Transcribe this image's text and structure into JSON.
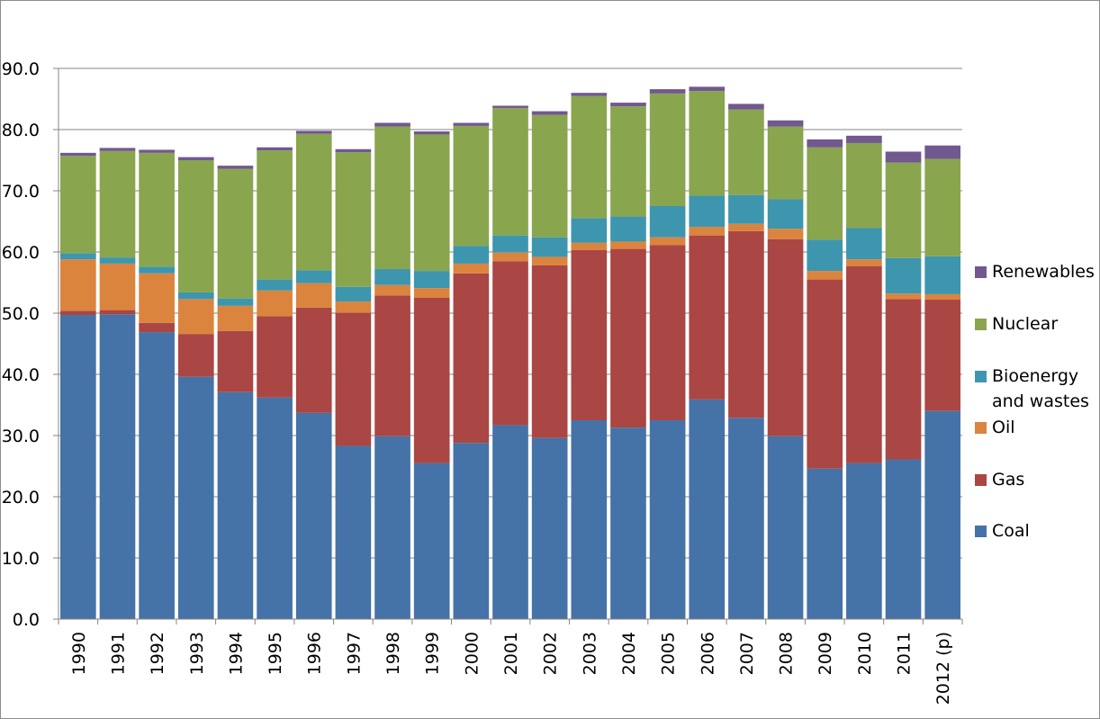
{
  "chart_data": {
    "type": "bar",
    "stacked": true,
    "title": "",
    "xlabel": "",
    "ylabel": "",
    "ylim": [
      0,
      90
    ],
    "yticks": [
      "0.0",
      "10.0",
      "20.0",
      "30.0",
      "40.0",
      "50.0",
      "60.0",
      "70.0",
      "80.0",
      "90.0"
    ],
    "grid": true,
    "legend_position": "right",
    "categories": [
      "1990",
      "1991",
      "1992",
      "1993",
      "1994",
      "1995",
      "1996",
      "1997",
      "1998",
      "1999",
      "2000",
      "2001",
      "2002",
      "2003",
      "2004",
      "2005",
      "2006",
      "2007",
      "2008",
      "2009",
      "2010",
      "2011",
      "2012 (p)"
    ],
    "series": [
      {
        "name": "Coal",
        "color": "#4572a7",
        "values": [
          49.7,
          49.8,
          46.9,
          39.6,
          37.1,
          36.2,
          33.7,
          28.3,
          29.9,
          25.5,
          28.8,
          31.7,
          29.6,
          32.5,
          31.3,
          32.5,
          35.9,
          32.9,
          29.9,
          24.6,
          25.5,
          26.1,
          34.0
        ]
      },
      {
        "name": "Gas",
        "color": "#aa4643",
        "values": [
          0.7,
          0.7,
          1.5,
          7.0,
          10.0,
          13.3,
          17.2,
          21.8,
          23.0,
          27.0,
          27.7,
          26.8,
          28.2,
          27.8,
          29.2,
          28.6,
          26.8,
          30.5,
          32.2,
          30.9,
          32.2,
          26.2,
          18.2
        ]
      },
      {
        "name": "Oil",
        "color": "#db843d",
        "values": [
          8.4,
          7.6,
          8.1,
          5.7,
          4.1,
          4.2,
          4.0,
          1.8,
          1.7,
          1.6,
          1.6,
          1.4,
          1.4,
          1.2,
          1.2,
          1.3,
          1.4,
          1.2,
          1.7,
          1.4,
          1.1,
          0.9,
          0.9
        ]
      },
      {
        "name": "Bioenergy and wastes",
        "color": "#3d96ae",
        "values": [
          1.0,
          1.0,
          1.1,
          1.1,
          1.2,
          1.8,
          2.1,
          2.4,
          2.6,
          2.8,
          2.9,
          2.8,
          3.2,
          4.0,
          4.1,
          5.1,
          5.1,
          4.7,
          4.8,
          5.1,
          5.1,
          5.8,
          6.2
        ]
      },
      {
        "name": "Nuclear",
        "color": "#89a54e",
        "values": [
          15.9,
          17.4,
          18.6,
          21.6,
          21.2,
          21.1,
          22.3,
          22.0,
          23.3,
          22.3,
          19.6,
          20.8,
          20.0,
          20.0,
          18.0,
          18.4,
          17.1,
          14.0,
          11.9,
          15.1,
          13.9,
          15.6,
          15.9
        ]
      },
      {
        "name": "Renewables",
        "color": "#71588f",
        "values": [
          0.5,
          0.5,
          0.5,
          0.5,
          0.5,
          0.5,
          0.5,
          0.5,
          0.6,
          0.5,
          0.5,
          0.4,
          0.6,
          0.5,
          0.6,
          0.7,
          0.7,
          0.9,
          1.0,
          1.3,
          1.2,
          1.8,
          2.2
        ]
      }
    ],
    "legend": [
      "Renewables",
      "Nuclear",
      "Bioenergy and wastes",
      "Oil",
      "Gas",
      "Coal"
    ]
  }
}
